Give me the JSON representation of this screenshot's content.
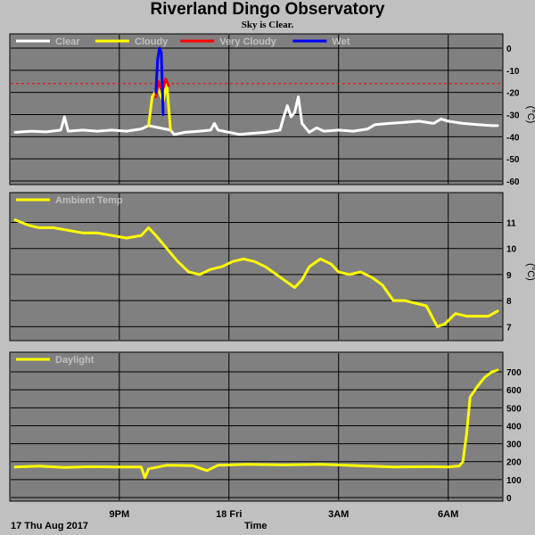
{
  "title": "Riverland Dingo Observatory",
  "subtitle": "Sky is Clear.",
  "footer": {
    "date": "17 Thu Aug 2017",
    "xlabel": "Time"
  },
  "x_ticks": [
    {
      "label": "9PM",
      "hour": 21
    },
    {
      "label": "18 Fri",
      "hour": 24
    },
    {
      "label": "3AM",
      "hour": 27
    },
    {
      "label": "6AM",
      "hour": 30
    }
  ],
  "x_range_hours": [
    18.15,
    31.35
  ],
  "chart_data": [
    {
      "type": "line",
      "panel": "sky",
      "ylabel": "(°C)",
      "ylim": [
        -60,
        0
      ],
      "yticks": [
        0,
        -10,
        -20,
        -30,
        -40,
        -50,
        -60
      ],
      "threshold": -16,
      "threshold_color": "#ff0000",
      "legend": [
        {
          "name": "Clear",
          "color": "#ffffff"
        },
        {
          "name": "Cloudy",
          "color": "#ffff00"
        },
        {
          "name": "Very Cloudy",
          "color": "#ff0000"
        },
        {
          "name": "Wet",
          "color": "#0000ff"
        }
      ],
      "series": [
        {
          "name": "Clear",
          "color": "#ffffff",
          "points": [
            [
              18.15,
              -38
            ],
            [
              18.6,
              -37.5
            ],
            [
              19.0,
              -37.8
            ],
            [
              19.4,
              -37
            ],
            [
              19.5,
              -31
            ],
            [
              19.6,
              -37.5
            ],
            [
              20.0,
              -37
            ],
            [
              20.4,
              -37.5
            ],
            [
              20.8,
              -37
            ],
            [
              21.2,
              -37.5
            ],
            [
              21.6,
              -36.5
            ],
            [
              21.8,
              -35
            ],
            [
              22.4,
              -37
            ],
            [
              22.5,
              -39
            ],
            [
              22.8,
              -38
            ],
            [
              23.2,
              -37.5
            ],
            [
              23.5,
              -37
            ],
            [
              23.6,
              -34
            ],
            [
              23.7,
              -37
            ],
            [
              24.0,
              -38
            ],
            [
              24.3,
              -39
            ],
            [
              24.6,
              -38.5
            ],
            [
              25.0,
              -38
            ],
            [
              25.4,
              -37
            ],
            [
              25.5,
              -31
            ],
            [
              25.6,
              -26
            ],
            [
              25.7,
              -31
            ],
            [
              25.8,
              -29
            ],
            [
              25.9,
              -22
            ],
            [
              26.0,
              -34
            ],
            [
              26.2,
              -38
            ],
            [
              26.4,
              -36
            ],
            [
              26.6,
              -37.5
            ],
            [
              27.0,
              -37
            ],
            [
              27.4,
              -37.5
            ],
            [
              27.8,
              -36.5
            ],
            [
              28.0,
              -34.5
            ],
            [
              28.4,
              -34
            ],
            [
              28.8,
              -33.5
            ],
            [
              29.2,
              -33
            ],
            [
              29.6,
              -34
            ],
            [
              29.8,
              -32
            ],
            [
              30.0,
              -33
            ],
            [
              30.4,
              -34
            ],
            [
              30.8,
              -34.5
            ],
            [
              31.2,
              -35
            ],
            [
              31.35,
              -35
            ]
          ]
        },
        {
          "name": "Cloudy",
          "color": "#ffff00",
          "points": [
            [
              21.8,
              -35
            ],
            [
              21.9,
              -22
            ],
            [
              22.05,
              -18
            ],
            [
              22.2,
              -24
            ],
            [
              22.3,
              -16
            ],
            [
              22.4,
              -37
            ]
          ]
        },
        {
          "name": "Very Cloudy",
          "color": "#ff0000",
          "points": [
            [
              22.0,
              -22
            ],
            [
              22.07,
              -15
            ],
            [
              22.14,
              -18
            ]
          ]
        },
        {
          "name": "Very Cloudy",
          "color": "#ff0000",
          "points": [
            [
              22.2,
              -18
            ],
            [
              22.27,
              -14
            ],
            [
              22.35,
              -17
            ]
          ]
        },
        {
          "name": "Wet",
          "color": "#0000ff",
          "points": [
            [
              22.0,
              -20
            ],
            [
              22.05,
              -5
            ],
            [
              22.1,
              0
            ],
            [
              22.15,
              -2
            ],
            [
              22.2,
              -30
            ]
          ]
        }
      ]
    },
    {
      "type": "line",
      "panel": "ambient",
      "ylabel": "(°C)",
      "ylim": [
        6.6,
        11.6
      ],
      "yticks": [
        11,
        10,
        9,
        8,
        7
      ],
      "legend": [
        {
          "name": "Ambient Temp",
          "color": "#ffff00"
        }
      ],
      "series": [
        {
          "name": "Ambient Temp",
          "color": "#ffff00",
          "points": [
            [
              18.15,
              11.1
            ],
            [
              18.5,
              10.9
            ],
            [
              18.8,
              10.8
            ],
            [
              19.2,
              10.8
            ],
            [
              19.6,
              10.7
            ],
            [
              20.0,
              10.6
            ],
            [
              20.4,
              10.6
            ],
            [
              20.8,
              10.5
            ],
            [
              21.2,
              10.4
            ],
            [
              21.6,
              10.5
            ],
            [
              21.8,
              10.8
            ],
            [
              22.0,
              10.5
            ],
            [
              22.3,
              10.0
            ],
            [
              22.6,
              9.5
            ],
            [
              22.9,
              9.1
            ],
            [
              23.2,
              9.0
            ],
            [
              23.5,
              9.2
            ],
            [
              23.8,
              9.3
            ],
            [
              24.1,
              9.5
            ],
            [
              24.4,
              9.6
            ],
            [
              24.7,
              9.5
            ],
            [
              25.0,
              9.3
            ],
            [
              25.3,
              9.0
            ],
            [
              25.6,
              8.7
            ],
            [
              25.8,
              8.5
            ],
            [
              26.0,
              8.8
            ],
            [
              26.2,
              9.3
            ],
            [
              26.5,
              9.6
            ],
            [
              26.8,
              9.4
            ],
            [
              27.0,
              9.1
            ],
            [
              27.3,
              9.0
            ],
            [
              27.6,
              9.1
            ],
            [
              27.9,
              8.9
            ],
            [
              28.2,
              8.6
            ],
            [
              28.5,
              8.0
            ],
            [
              28.8,
              8.0
            ],
            [
              29.1,
              7.9
            ],
            [
              29.4,
              7.8
            ],
            [
              29.7,
              7.0
            ],
            [
              29.9,
              7.1
            ],
            [
              30.2,
              7.5
            ],
            [
              30.5,
              7.4
            ],
            [
              30.8,
              7.4
            ],
            [
              31.1,
              7.4
            ],
            [
              31.35,
              7.6
            ]
          ]
        }
      ]
    },
    {
      "type": "line",
      "panel": "daylight",
      "ylim": [
        0,
        730
      ],
      "yticks": [
        700,
        600,
        500,
        400,
        300,
        200,
        100,
        0
      ],
      "legend": [
        {
          "name": "Daylight",
          "color": "#ffff00"
        }
      ],
      "series": [
        {
          "name": "Daylight",
          "color": "#ffff00",
          "points": [
            [
              18.15,
              170
            ],
            [
              18.8,
              175
            ],
            [
              19.5,
              168
            ],
            [
              20.2,
              172
            ],
            [
              21.0,
              170
            ],
            [
              21.6,
              170
            ],
            [
              21.7,
              110
            ],
            [
              21.8,
              160
            ],
            [
              22.3,
              180
            ],
            [
              23.0,
              178
            ],
            [
              23.4,
              150
            ],
            [
              23.7,
              180
            ],
            [
              24.5,
              185
            ],
            [
              25.5,
              182
            ],
            [
              26.5,
              185
            ],
            [
              27.5,
              178
            ],
            [
              28.5,
              170
            ],
            [
              29.5,
              172
            ],
            [
              30.0,
              170
            ],
            [
              30.3,
              176
            ],
            [
              30.4,
              200
            ],
            [
              30.5,
              350
            ],
            [
              30.6,
              560
            ],
            [
              30.8,
              620
            ],
            [
              31.0,
              670
            ],
            [
              31.2,
              700
            ],
            [
              31.35,
              710
            ]
          ]
        }
      ]
    }
  ]
}
